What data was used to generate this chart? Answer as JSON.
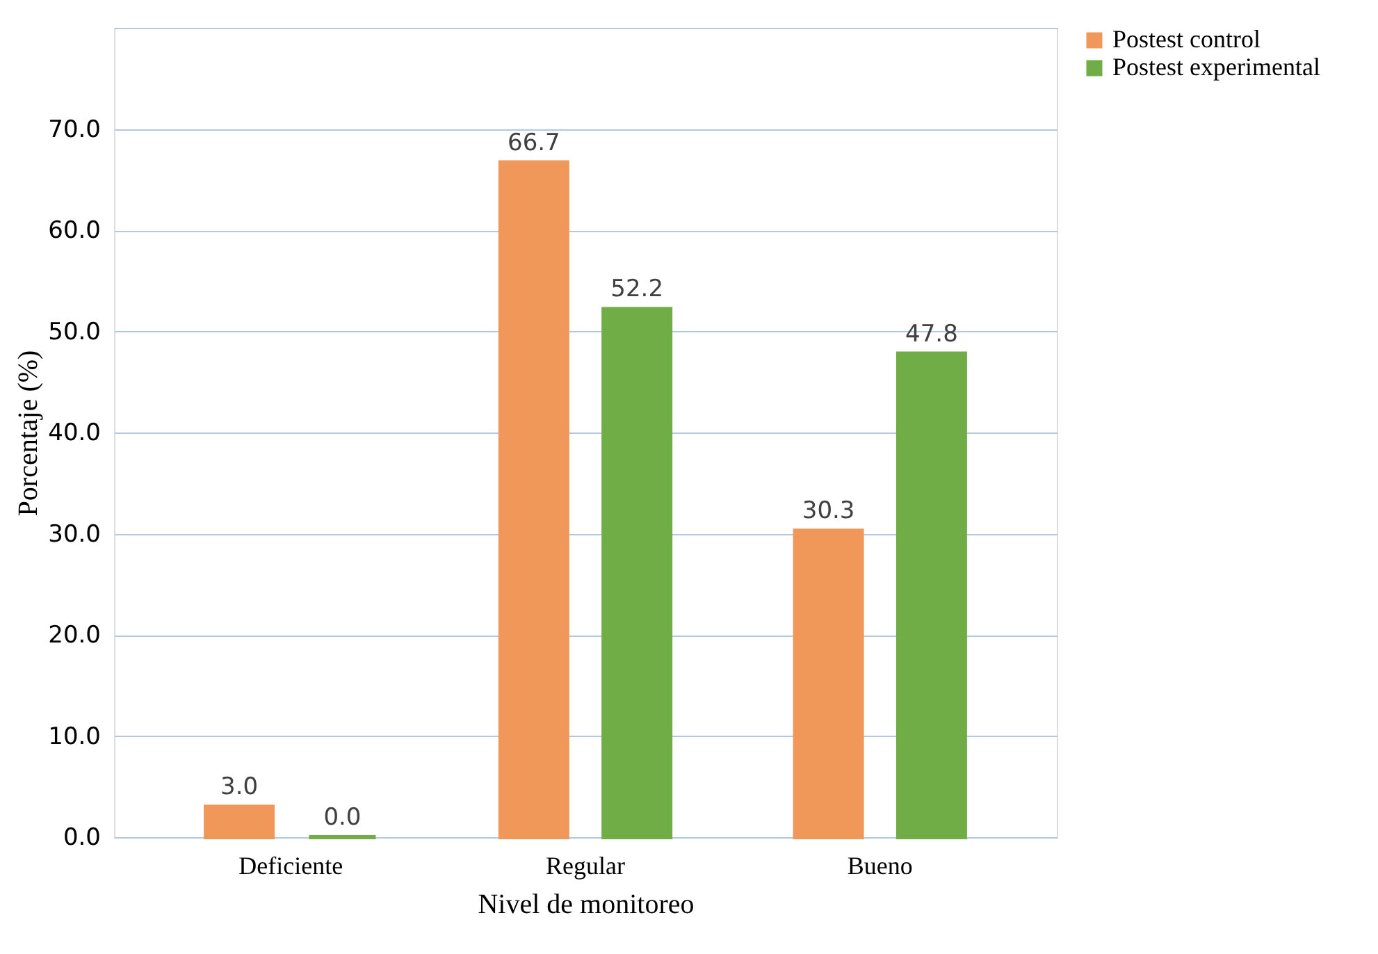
{
  "chart_data": {
    "type": "bar",
    "xlabel": "Nivel de monitoreo",
    "ylabel": "Porcentaje (%)",
    "categories": [
      "Deficiente",
      "Regular",
      "Bueno"
    ],
    "series": [
      {
        "name": "Postest control",
        "color": "#f0975a",
        "values": [
          3.0,
          66.7,
          30.3
        ],
        "value_labels": [
          "3.0",
          "66.7",
          "30.3"
        ]
      },
      {
        "name": "Postest experimental",
        "color": "#70ad47",
        "values": [
          0.0,
          52.2,
          47.8
        ],
        "value_labels": [
          "0.0",
          "52.2",
          "47.8"
        ]
      }
    ],
    "ylim": [
      0,
      80
    ],
    "yticks": [
      {
        "value": 0,
        "label": "0.0"
      },
      {
        "value": 10,
        "label": "10.0"
      },
      {
        "value": 20,
        "label": "20.0"
      },
      {
        "value": 30,
        "label": "30.0"
      },
      {
        "value": 40,
        "label": "40.0"
      },
      {
        "value": 50,
        "label": "50.0"
      },
      {
        "value": 60,
        "label": "60.0"
      },
      {
        "value": 70,
        "label": "70.0"
      },
      {
        "value": 80,
        "label": null
      }
    ],
    "grid": "y",
    "legend": "right"
  }
}
